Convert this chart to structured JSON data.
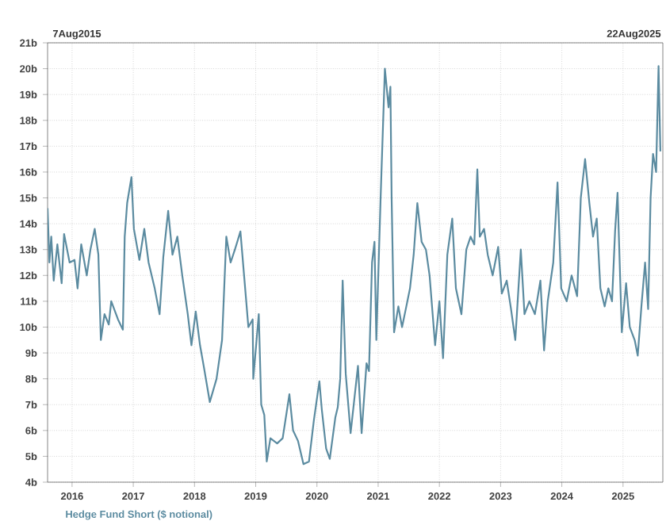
{
  "chart_data": {
    "type": "line",
    "x": [
      2015.6,
      2015.63,
      2015.66,
      2015.7,
      2015.76,
      2015.83,
      2015.87,
      2015.96,
      2016.04,
      2016.09,
      2016.15,
      2016.24,
      2016.3,
      2016.37,
      2016.43,
      2016.47,
      2016.53,
      2016.6,
      2016.64,
      2016.75,
      2016.83,
      2016.86,
      2016.9,
      2016.97,
      2017.01,
      2017.1,
      2017.18,
      2017.25,
      2017.35,
      2017.43,
      2017.49,
      2017.57,
      2017.64,
      2017.72,
      2017.8,
      2017.89,
      2017.95,
      2018.02,
      2018.09,
      2018.15,
      2018.25,
      2018.36,
      2018.45,
      2018.52,
      2018.59,
      2018.66,
      2018.75,
      2018.81,
      2018.88,
      2018.95,
      2018.96,
      2019.05,
      2019.09,
      2019.14,
      2019.18,
      2019.24,
      2019.35,
      2019.44,
      2019.55,
      2019.61,
      2019.69,
      2019.78,
      2019.87,
      2019.95,
      2020.04,
      2020.08,
      2020.15,
      2020.21,
      2020.3,
      2020.34,
      2020.38,
      2020.42,
      2020.47,
      2020.55,
      2020.67,
      2020.73,
      2020.81,
      2020.85,
      2020.9,
      2020.94,
      2020.97,
      2021.04,
      2021.11,
      2021.17,
      2021.2,
      2021.22,
      2021.26,
      2021.33,
      2021.39,
      2021.46,
      2021.52,
      2021.58,
      2021.64,
      2021.71,
      2021.78,
      2021.84,
      2021.93,
      2022.0,
      2022.06,
      2022.13,
      2022.21,
      2022.27,
      2022.36,
      2022.44,
      2022.51,
      2022.57,
      2022.62,
      2022.66,
      2022.73,
      2022.79,
      2022.87,
      2022.96,
      2023.02,
      2023.1,
      2023.17,
      2023.24,
      2023.33,
      2023.39,
      2023.47,
      2023.56,
      2023.65,
      2023.71,
      2023.77,
      2023.86,
      2023.93,
      2023.99,
      2024.08,
      2024.16,
      2024.25,
      2024.31,
      2024.38,
      2024.45,
      2024.51,
      2024.57,
      2024.63,
      2024.7,
      2024.76,
      2024.82,
      2024.87,
      2024.91,
      2024.98,
      2025.05,
      2025.11,
      2025.19,
      2025.24,
      2025.3,
      2025.36,
      2025.41,
      2025.45,
      2025.49,
      2025.54,
      2025.58,
      2025.61
    ],
    "series": [
      {
        "name": "Hedge Fund Short ($ notional)",
        "color": "#5b8ba0",
        "values": [
          14.6,
          12.5,
          13.5,
          11.8,
          13.2,
          11.7,
          13.6,
          12.5,
          12.6,
          11.5,
          13.2,
          12.0,
          13.0,
          13.8,
          12.8,
          9.5,
          10.5,
          10.1,
          11.0,
          10.3,
          9.9,
          13.5,
          14.8,
          15.8,
          13.8,
          12.6,
          13.8,
          12.5,
          11.5,
          10.5,
          12.7,
          14.5,
          12.8,
          13.5,
          12.0,
          10.5,
          9.3,
          10.6,
          9.3,
          8.5,
          7.1,
          8.0,
          9.5,
          13.5,
          12.5,
          13.0,
          13.7,
          12.0,
          10.0,
          10.3,
          8.0,
          10.5,
          7.0,
          6.6,
          4.8,
          5.7,
          5.5,
          5.7,
          7.4,
          6.0,
          5.6,
          4.7,
          4.8,
          6.4,
          7.9,
          6.8,
          5.3,
          4.9,
          6.5,
          6.9,
          8.0,
          11.8,
          8.2,
          5.9,
          8.5,
          5.9,
          8.6,
          8.3,
          12.5,
          13.3,
          9.5,
          15.0,
          20.0,
          18.5,
          19.3,
          15.0,
          9.8,
          10.8,
          10.0,
          10.8,
          11.5,
          12.8,
          14.8,
          13.3,
          13.0,
          12.0,
          9.3,
          11.0,
          8.8,
          12.8,
          14.2,
          11.5,
          10.5,
          13.0,
          13.5,
          13.2,
          16.1,
          13.5,
          13.8,
          12.8,
          12.0,
          13.1,
          11.3,
          11.8,
          10.7,
          9.5,
          13.0,
          10.5,
          11.0,
          10.5,
          11.8,
          9.1,
          11.0,
          12.5,
          15.6,
          11.5,
          11.0,
          12.0,
          11.2,
          15.0,
          16.5,
          14.8,
          13.5,
          14.2,
          11.5,
          10.8,
          11.5,
          11.0,
          13.7,
          15.2,
          9.8,
          11.7,
          10.0,
          9.5,
          8.9,
          10.8,
          12.5,
          10.7,
          15.0,
          16.7,
          16.0,
          20.1,
          16.8
        ]
      }
    ],
    "xlim": [
      2015.6,
      2025.65
    ],
    "ylim": [
      4,
      21
    ],
    "xticks": [
      2016,
      2017,
      2018,
      2019,
      2020,
      2021,
      2022,
      2023,
      2024,
      2025
    ],
    "yticks": [
      {
        "value": 4,
        "label": "4b"
      },
      {
        "value": 5,
        "label": "5b"
      },
      {
        "value": 6,
        "label": "6b"
      },
      {
        "value": 7,
        "label": "7b"
      },
      {
        "value": 8,
        "label": "8b"
      },
      {
        "value": 9,
        "label": "9b"
      },
      {
        "value": 10,
        "label": "10b"
      },
      {
        "value": 11,
        "label": "11b"
      },
      {
        "value": 12,
        "label": "12b"
      },
      {
        "value": 13,
        "label": "13b"
      },
      {
        "value": 14,
        "label": "14b"
      },
      {
        "value": 15,
        "label": "15b"
      },
      {
        "value": 16,
        "label": "16b"
      },
      {
        "value": 17,
        "label": "17b"
      },
      {
        "value": 18,
        "label": "18b"
      },
      {
        "value": 19,
        "label": "19b"
      },
      {
        "value": 20,
        "label": "20b"
      },
      {
        "value": 21,
        "label": "21b"
      }
    ],
    "grid": true,
    "legend": "bottom left",
    "annotations": [
      "7Aug2015",
      "22Aug2025"
    ]
  }
}
